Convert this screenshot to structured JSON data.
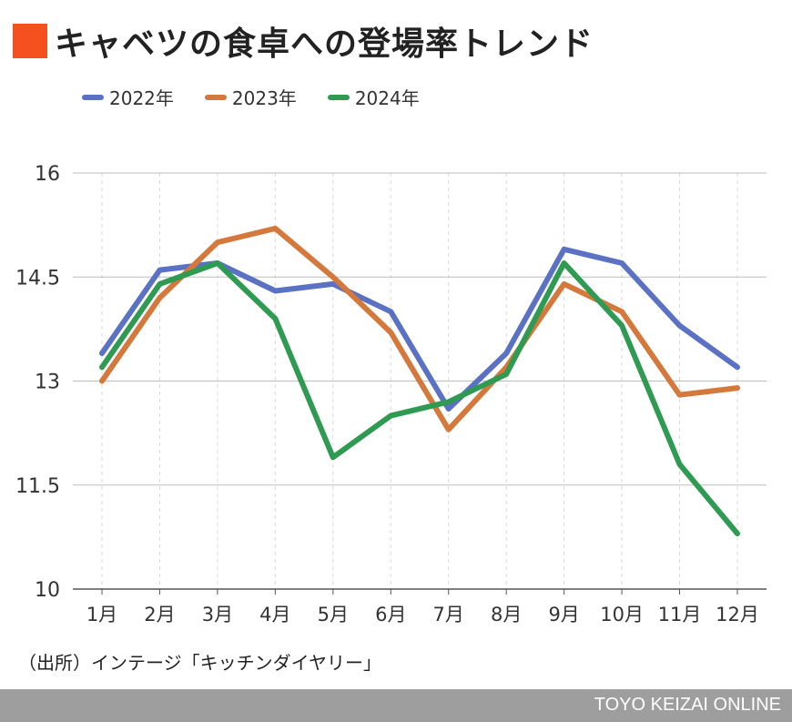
{
  "title": "キャベツの食卓への登場率トレンド",
  "source": "（出所）インテージ「キッチンダイヤリー」",
  "brand": "TOYO KEIZAI ONLINE",
  "colors": {
    "title_square": "#f4511e",
    "footer": "#9e9e9e",
    "grid": "#bdbdbd"
  },
  "chart_data": {
    "type": "line",
    "title": "キャベツの食卓への登場率トレンド",
    "xlabel": "",
    "ylabel": "",
    "categories": [
      "1月",
      "2月",
      "3月",
      "4月",
      "5月",
      "6月",
      "7月",
      "8月",
      "9月",
      "10月",
      "11月",
      "12月"
    ],
    "ylim": [
      10,
      16
    ],
    "yticks": [
      10,
      11.5,
      13,
      14.5,
      16
    ],
    "ytick_labels": [
      "10",
      "11.5",
      "13",
      "14.5",
      "16"
    ],
    "grid": true,
    "legend_position": "top-left",
    "series": [
      {
        "name": "2022年",
        "color": "#5b72c4",
        "values": [
          13.4,
          14.6,
          14.7,
          14.3,
          14.4,
          14.0,
          12.6,
          13.4,
          14.9,
          14.7,
          13.8,
          13.2
        ]
      },
      {
        "name": "2023年",
        "color": "#d4793b",
        "values": [
          13.0,
          14.2,
          15.0,
          15.2,
          14.5,
          13.7,
          12.3,
          13.2,
          14.4,
          14.0,
          12.8,
          12.9
        ]
      },
      {
        "name": "2024年",
        "color": "#2e9a52",
        "values": [
          13.2,
          14.4,
          14.7,
          13.9,
          11.9,
          12.5,
          12.7,
          13.1,
          14.7,
          13.8,
          11.8,
          10.8
        ]
      }
    ]
  }
}
